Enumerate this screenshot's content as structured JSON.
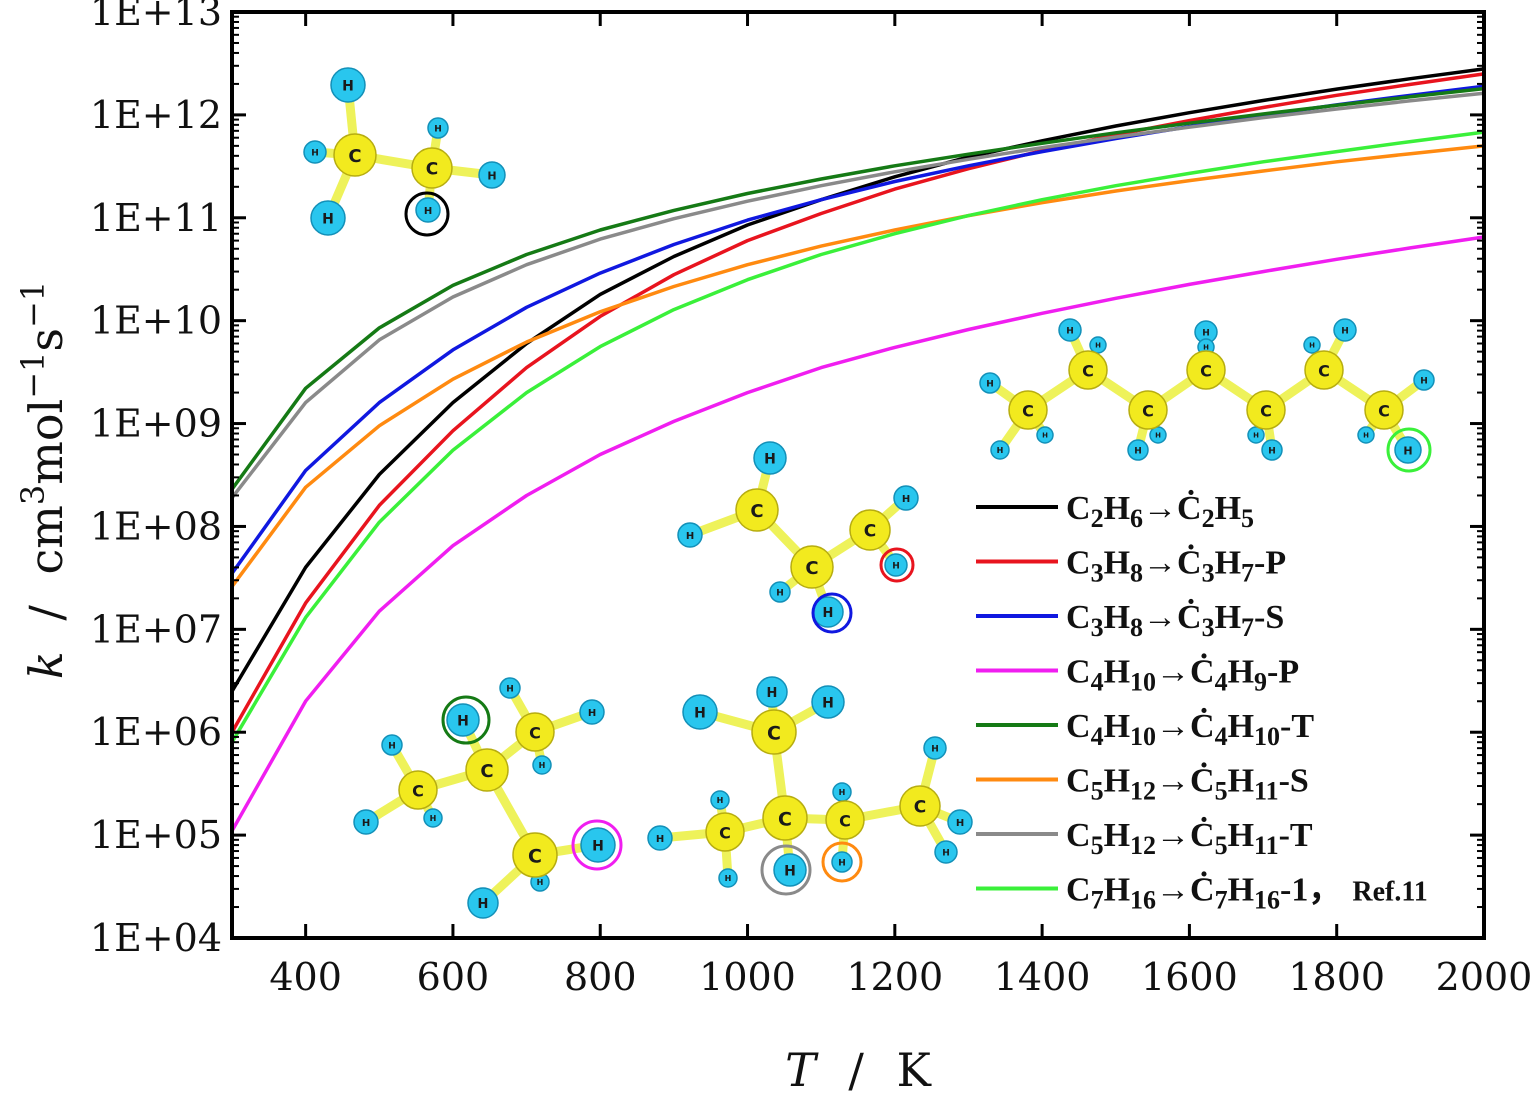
{
  "chart_data": {
    "type": "line",
    "y_scale": "log",
    "xlabel_var": "T",
    "xlabel_unit": "K",
    "ylabel_var": "k",
    "ylabel_unit_parts": [
      "cm",
      "3",
      "mol",
      "−1",
      "s",
      "−1"
    ],
    "label_separator": "/",
    "xlim": [
      300,
      2000
    ],
    "ylim": [
      10000,
      10000000000000
    ],
    "x_ticks": [
      400,
      600,
      800,
      1000,
      1200,
      1400,
      1600,
      1800,
      2000
    ],
    "y_ticks": [
      {
        "value": 10000,
        "label": "1E+04"
      },
      {
        "value": 100000,
        "label": "1E+05"
      },
      {
        "value": 1000000,
        "label": "1E+06"
      },
      {
        "value": 10000000,
        "label": "1E+07"
      },
      {
        "value": 100000000,
        "label": "1E+08"
      },
      {
        "value": 1000000000,
        "label": "1E+09"
      },
      {
        "value": 10000000000,
        "label": "1E+10"
      },
      {
        "value": 100000000000,
        "label": "1E+11"
      },
      {
        "value": 1000000000000,
        "label": "1E+12"
      },
      {
        "value": 10000000000000,
        "label": "1E+13"
      }
    ],
    "x": [
      300,
      400,
      500,
      600,
      700,
      800,
      900,
      1000,
      1100,
      1200,
      1300,
      1400,
      1500,
      1600,
      1700,
      1800,
      1900,
      2000
    ],
    "series": [
      {
        "name": "C2H6→Ċ2H5",
        "color": "#000000",
        "parts": [
          [
            "C",
            ""
          ],
          [
            "H",
            "2"
          ],
          [
            "",
            ""
          ],
          [
            "H",
            "6"
          ],
          [
            "→",
            ""
          ],
          [
            "Ċ",
            ""
          ],
          [
            "",
            "2"
          ],
          [
            "H",
            "5"
          ]
        ],
        "plain": [
          "C",
          "2",
          "H",
          "6",
          "→Ċ",
          "2",
          "H",
          "5",
          ""
        ],
        "values": [
          2500000.0,
          40000000.0,
          320000000.0,
          1600000000.0,
          6000000000.0,
          18000000000.0,
          42000000000.0,
          85000000000.0,
          150000000000.0,
          250000000000.0,
          390000000000.0,
          560000000000.0,
          780000000000.0,
          1050000000000.0,
          1380000000000.0,
          1780000000000.0,
          2250000000000.0,
          2800000000000.0
        ]
      },
      {
        "name": "C3H8→Ċ3H7-P",
        "color": "#e8141e",
        "plain": [
          "C",
          "3",
          "H",
          "8",
          "→Ċ",
          "3",
          "H",
          "7",
          "-P"
        ],
        "values": [
          1000000.0,
          18000000.0,
          160000000.0,
          850000000.0,
          3500000000.0,
          11000000000.0,
          28000000000.0,
          60000000000.0,
          110000000000.0,
          190000000000.0,
          300000000000.0,
          450000000000.0,
          640000000000.0,
          880000000000.0,
          1180000000000.0,
          1550000000000.0,
          1980000000000.0,
          2500000000000.0
        ]
      },
      {
        "name": "C3H8→Ċ3H7-S",
        "color": "#1018e0",
        "plain": [
          "C",
          "3",
          "H",
          "8",
          "→Ċ",
          "3",
          "H",
          "7",
          "-S"
        ],
        "values": [
          35000000.0,
          350000000.0,
          1600000000.0,
          5200000000.0,
          13500000000.0,
          29000000000.0,
          55000000000.0,
          95000000000.0,
          150000000000.0,
          225000000000.0,
          320000000000.0,
          440000000000.0,
          590000000000.0,
          770000000000.0,
          990000000000.0,
          1250000000000.0,
          1550000000000.0,
          1900000000000.0
        ]
      },
      {
        "name": "C4H10→Ċ4H9-P",
        "color": "#f01ef0",
        "plain": [
          "C",
          "4",
          "H",
          "10",
          "→Ċ",
          "4",
          "H",
          "9",
          "-P"
        ],
        "values": [
          110000.0,
          2000000.0,
          15000000.0,
          65000000.0,
          200000000.0,
          500000000.0,
          1050000000.0,
          2000000000.0,
          3500000000.0,
          5500000000.0,
          8200000000.0,
          11800000000.0,
          16500000000.0,
          22500000000.0,
          30000000000.0,
          39500000000.0,
          51000000000.0,
          65000000000.0
        ]
      },
      {
        "name": "C4H10→Ċ4H10-T",
        "color": "#157a15",
        "plain": [
          "C",
          "4",
          "H",
          "10",
          "→Ċ",
          "4",
          "H",
          "10",
          "-T"
        ],
        "values": [
          230000000.0,
          2200000000.0,
          8500000000.0,
          22000000000.0,
          44000000000.0,
          76000000000.0,
          118000000000.0,
          172000000000.0,
          238000000000.0,
          320000000000.0,
          415000000000.0,
          530000000000.0,
          670000000000.0,
          830000000000.0,
          1020000000000.0,
          1240000000000.0,
          1500000000000.0,
          1800000000000.0
        ]
      },
      {
        "name": "C5H12→Ċ5H11-S",
        "color": "#ff8a10",
        "plain": [
          "C",
          "5",
          "H",
          "12",
          "→Ċ",
          "5",
          "H",
          "11",
          "-S"
        ],
        "values": [
          26000000.0,
          240000000.0,
          950000000.0,
          2700000000.0,
          6200000000.0,
          12200000000.0,
          21500000000.0,
          35000000000.0,
          53000000000.0,
          76000000000.0,
          105000000000.0,
          140000000000.0,
          182000000000.0,
          230000000000.0,
          285000000000.0,
          350000000000.0,
          420000000000.0,
          500000000000.0
        ]
      },
      {
        "name": "C5H12→Ċ5H11-T",
        "color": "#8a8a8a",
        "plain": [
          "C",
          "5",
          "H",
          "12",
          "→Ċ",
          "5",
          "H",
          "11",
          "-T"
        ],
        "values": [
          190000000.0,
          1600000000.0,
          6500000000.0,
          17000000000.0,
          35000000000.0,
          62000000000.0,
          98000000000.0,
          145000000000.0,
          205000000000.0,
          280000000000.0,
          370000000000.0,
          480000000000.0,
          610000000000.0,
          760000000000.0,
          940000000000.0,
          1140000000000.0,
          1370000000000.0,
          1620000000000.0
        ]
      },
      {
        "name": "C7H16→Ċ7H16-1, Ref.11",
        "color": "#3af03a",
        "plain": [
          "C",
          "7",
          "H",
          "16",
          "→Ċ",
          "7",
          "H",
          "16",
          "-1，"
        ],
        "suffix": "Ref.11",
        "values": [
          800000.0,
          13000000.0,
          110000000.0,
          550000000.0,
          2000000000.0,
          5600000000.0,
          12800000000.0,
          25000000000.0,
          44000000000.0,
          70000000000.0,
          105000000000.0,
          150000000000.0,
          205000000000.0,
          270000000000.0,
          350000000000.0,
          440000000000.0,
          550000000000.0,
          680000000000.0
        ]
      }
    ]
  }
}
